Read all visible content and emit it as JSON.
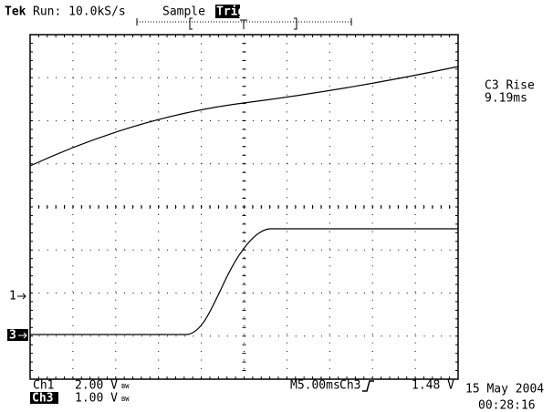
{
  "header": {
    "brand": "Tek",
    "run": "Run: 10.0kS/s",
    "mode": "Sample",
    "trigger_status": "Trig?"
  },
  "measurement": {
    "label": "C3 Rise",
    "value": "9.19ms"
  },
  "markers": {
    "ch1": "1",
    "ch3": "3"
  },
  "footer": {
    "ch1": {
      "name": "Ch1",
      "scale": "2.00 V",
      "bw": "BW"
    },
    "ch3": {
      "name": "Ch3",
      "scale": "1.00 V",
      "bw": "BW"
    },
    "timebase": "M5.00ms",
    "trigger_source": "Ch3",
    "trigger_level": "1.48 V",
    "date": "15 May 2004",
    "time": "00:28:16"
  }
}
